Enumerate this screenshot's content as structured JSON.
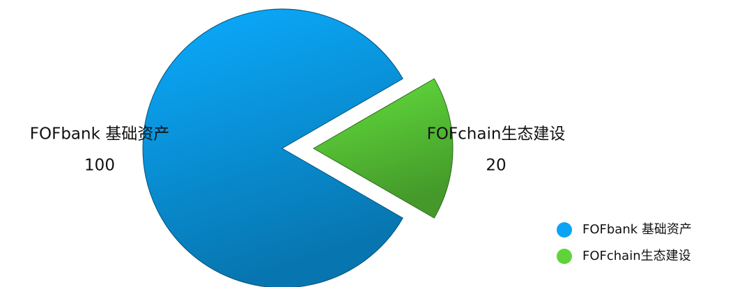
{
  "chart_data": {
    "type": "pie",
    "categories": [
      "FOFbank 基础资产",
      "FOFchain生态建设"
    ],
    "values": [
      100,
      20
    ],
    "colors": [
      "#0aa4f5",
      "#5ed43a"
    ],
    "legend": "bottom-right"
  }
}
